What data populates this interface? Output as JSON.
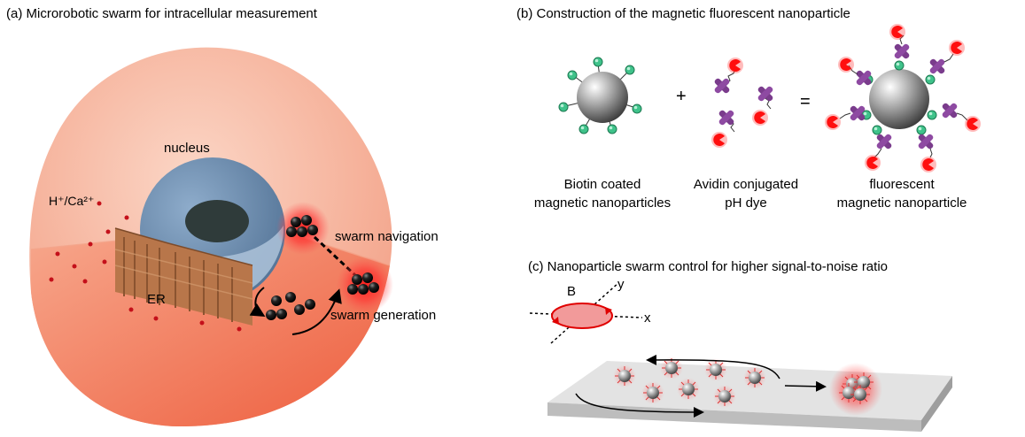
{
  "panels": {
    "a": {
      "title": "(a) Microrobotic swarm for intracellular measurement",
      "labels": {
        "nucleus": "nucleus",
        "ions": "H⁺/Ca²⁺",
        "er": "ER",
        "swarm_navigation": "swarm navigation",
        "swarm_generation": "swarm generation"
      }
    },
    "b": {
      "title": "(b) Construction of the magnetic fluorescent nanoparticle",
      "operators": {
        "plus": "+",
        "equals": "="
      },
      "captions": {
        "biotin_line1": "Biotin coated",
        "biotin_line2": "magnetic nanoparticles",
        "avidin_line1": "Avidin conjugated",
        "avidin_line2": "pH dye",
        "fluor_line1": "fluorescent",
        "fluor_line2": "magnetic nanoparticle"
      }
    },
    "c": {
      "title": "(c) Nanoparticle swarm control for higher signal-to-noise ratio",
      "axes": {
        "b": "B",
        "x": "x",
        "y": "y"
      }
    }
  },
  "colors": {
    "cell": "#f6b39c",
    "cell_dark": "#ee6a4a",
    "nucleus": "#6f8fb0",
    "nucleolus": "#2f3b3a",
    "er": "#b8764a",
    "glow": "#ff2020",
    "avidin": "#7a3c8c",
    "biotin": "#2fae7a",
    "dye": "#ff1a1a"
  }
}
